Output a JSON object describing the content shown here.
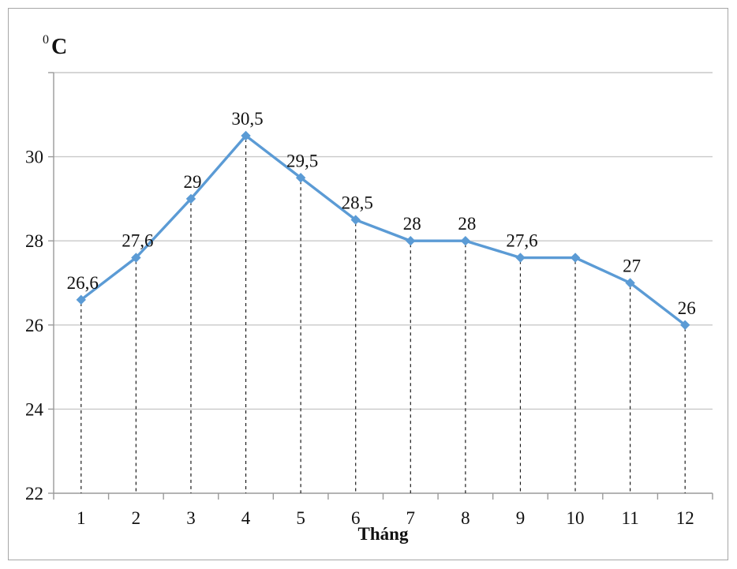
{
  "y_axis_unit": {
    "superscript": "0",
    "letter": "C"
  },
  "x_axis_title": "Tháng",
  "chart_data": {
    "type": "line",
    "title": "",
    "categories": [
      "1",
      "2",
      "3",
      "4",
      "5",
      "6",
      "7",
      "8",
      "9",
      "10",
      "11",
      "12"
    ],
    "xlabel": "Tháng",
    "ylabel": "0C",
    "ylim": [
      22,
      32
    ],
    "yticks": [
      22,
      24,
      26,
      28,
      30
    ],
    "grid": true,
    "legend": false,
    "marker": "diamond",
    "series": [
      {
        "values": [
          26.6,
          27.6,
          29,
          30.5,
          29.5,
          28.5,
          28,
          28,
          27.6,
          27.6,
          27,
          26
        ]
      }
    ],
    "data_labels": [
      "26,6",
      "27,6",
      "29",
      "30,5",
      "29,5",
      "28,5",
      "28",
      "28",
      "27,6",
      "",
      "27",
      "26"
    ],
    "colors": {
      "line": "#5b9bd5",
      "marker": "#5b9bd5",
      "grid": "#c9c9c9",
      "axis": "#9a9a9a",
      "drop_line": "#1c1c1c",
      "text": "#111111",
      "border": "#a6a6a6"
    }
  }
}
